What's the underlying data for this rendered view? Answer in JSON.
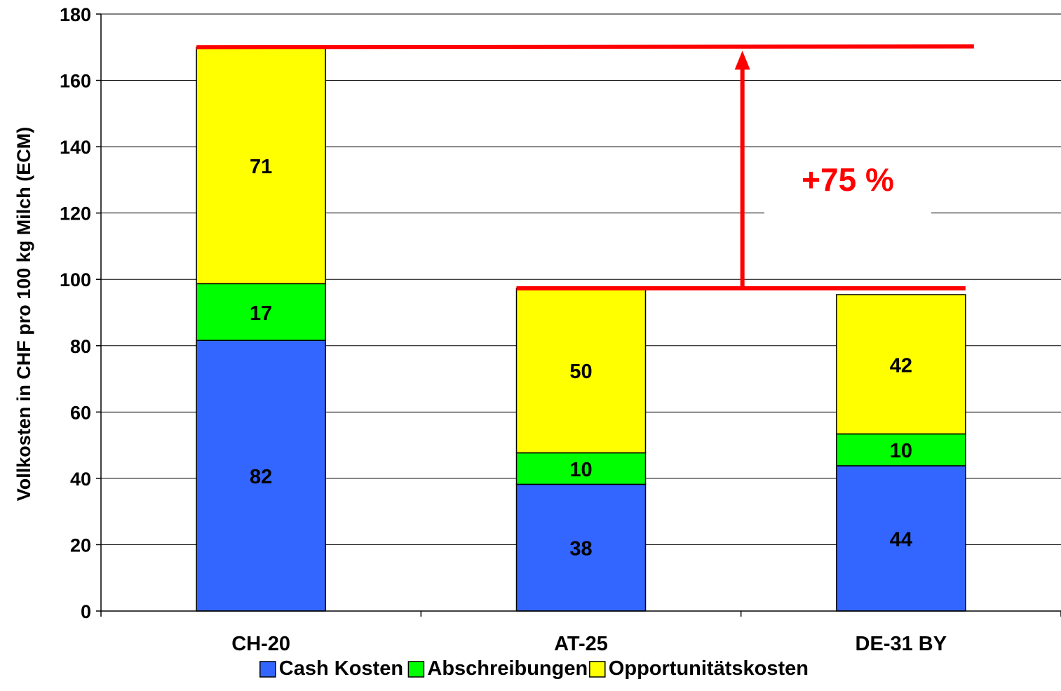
{
  "chart_data": {
    "type": "bar",
    "stacked": true,
    "categories": [
      "CH-20",
      "AT-25",
      "DE-31 BY"
    ],
    "series": [
      {
        "name": "Cash Kosten",
        "values": [
          82,
          38,
          44
        ],
        "color": "#3366FF"
      },
      {
        "name": "Abschreibungen",
        "values": [
          17,
          10,
          10
        ],
        "color": "#00FF00"
      },
      {
        "name": "Opportunitätskosten",
        "values": [
          71,
          50,
          42
        ],
        "color": "#FFFF00"
      }
    ],
    "segment_bounds": [
      [
        [
          0,
          81.6
        ],
        [
          81.6,
          98.7
        ],
        [
          98.7,
          169.9
        ]
      ],
      [
        [
          0,
          38.2
        ],
        [
          38.2,
          47.7
        ],
        [
          47.7,
          97.3
        ]
      ],
      [
        [
          0,
          43.8
        ],
        [
          43.8,
          53.4
        ],
        [
          53.4,
          95.4
        ]
      ]
    ],
    "ylabel": "Vollkosten in CHF pro 100 kg Milch (ECM)",
    "xlabel": "",
    "title": "",
    "ylim": [
      0,
      180
    ],
    "yticks": [
      0,
      20,
      40,
      60,
      80,
      100,
      120,
      140,
      160,
      180
    ],
    "grid": true,
    "legend_position": "bottom",
    "annotation": {
      "text": "+75 %",
      "color": "#FF0000",
      "upper_level": 170,
      "lower_level": 97.3
    }
  }
}
